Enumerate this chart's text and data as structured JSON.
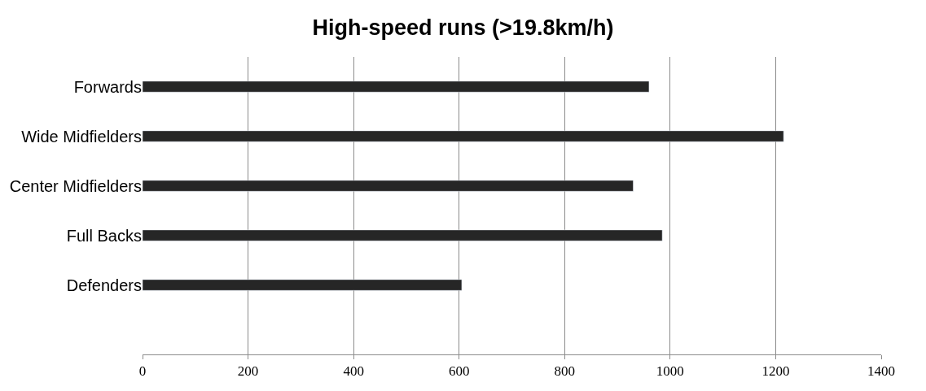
{
  "chart_data": {
    "type": "bar",
    "orientation": "horizontal",
    "title": "High-speed runs (>19.8km/h)",
    "categories": [
      "Forwards",
      "Wide Midfielders",
      "Center Midfielders",
      "Full Backs",
      "Defenders"
    ],
    "values": [
      960,
      1215,
      930,
      985,
      605
    ],
    "color": "#262626",
    "xlim": [
      0,
      1400
    ],
    "xticks": [
      0,
      200,
      400,
      600,
      800,
      1000,
      1200,
      1400
    ],
    "grid": "x",
    "legend": false
  }
}
